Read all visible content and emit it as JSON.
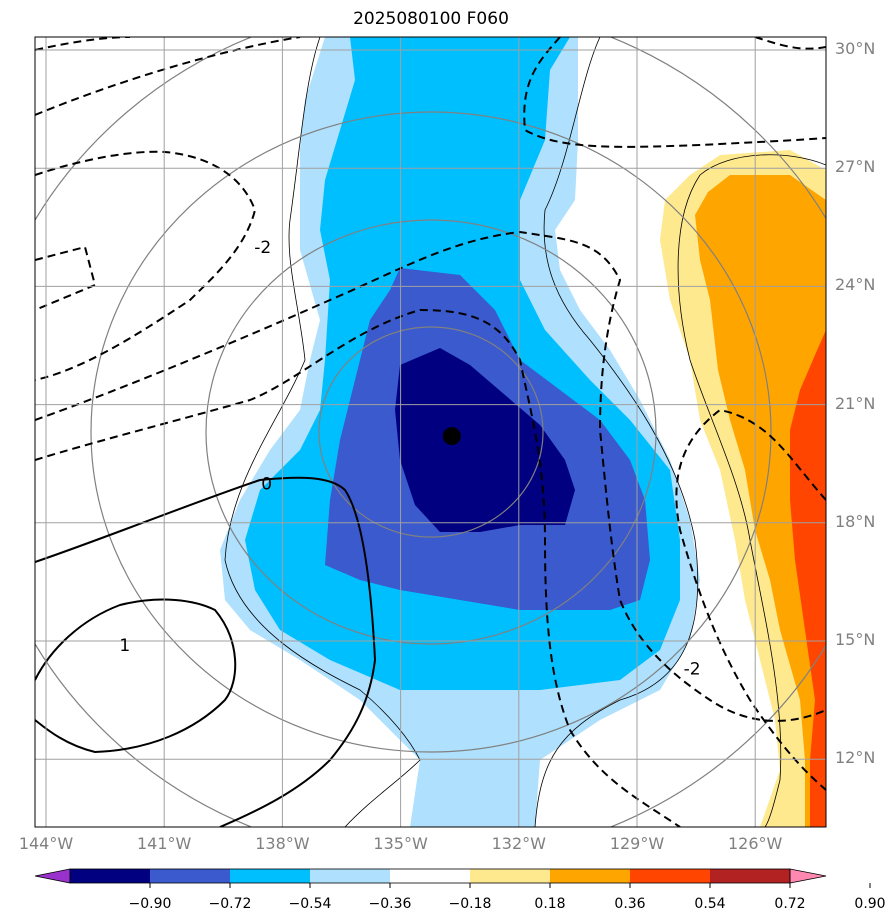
{
  "title": "2025080100 F060",
  "map": {
    "lon_ticks": [
      {
        "value": -144,
        "label": "144°W"
      },
      {
        "value": -141,
        "label": "141°W"
      },
      {
        "value": -138,
        "label": "138°W"
      },
      {
        "value": -135,
        "label": "135°W"
      },
      {
        "value": -132,
        "label": "132°W"
      },
      {
        "value": -129,
        "label": "129°W"
      },
      {
        "value": -126,
        "label": "126°W"
      }
    ],
    "lat_ticks": [
      {
        "value": 30,
        "label": "30°N"
      },
      {
        "value": 27,
        "label": "27°N"
      },
      {
        "value": 24,
        "label": "24°N"
      },
      {
        "value": 21,
        "label": "21°N"
      },
      {
        "value": 18,
        "label": "18°N"
      },
      {
        "value": 15,
        "label": "15°N"
      },
      {
        "value": 12,
        "label": "12°N"
      }
    ],
    "storm_center": {
      "lon": -133.7,
      "lat": 20.2
    },
    "contour_labels": [
      {
        "text": "-2",
        "lon": -138.5,
        "lat": 25.0
      },
      {
        "text": "0",
        "lon": -138.4,
        "lat": 19.0
      },
      {
        "text": "1",
        "lon": -142.0,
        "lat": 14.9
      },
      {
        "text": "-2",
        "lon": -127.6,
        "lat": 14.3
      }
    ]
  },
  "colorbar": {
    "colors": [
      "#9932cc",
      "#000080",
      "#3a5acd",
      "#00bfff",
      "#afe0fd",
      "#ffffff",
      "#ffe98f",
      "#ffa500",
      "#ff4500",
      "#b22222",
      "#ff88b0"
    ],
    "labels": [
      "−0.90",
      "−0.72",
      "−0.54",
      "−0.36",
      "−0.18",
      "0.18",
      "0.36",
      "0.54",
      "0.72",
      "0.90"
    ]
  }
}
